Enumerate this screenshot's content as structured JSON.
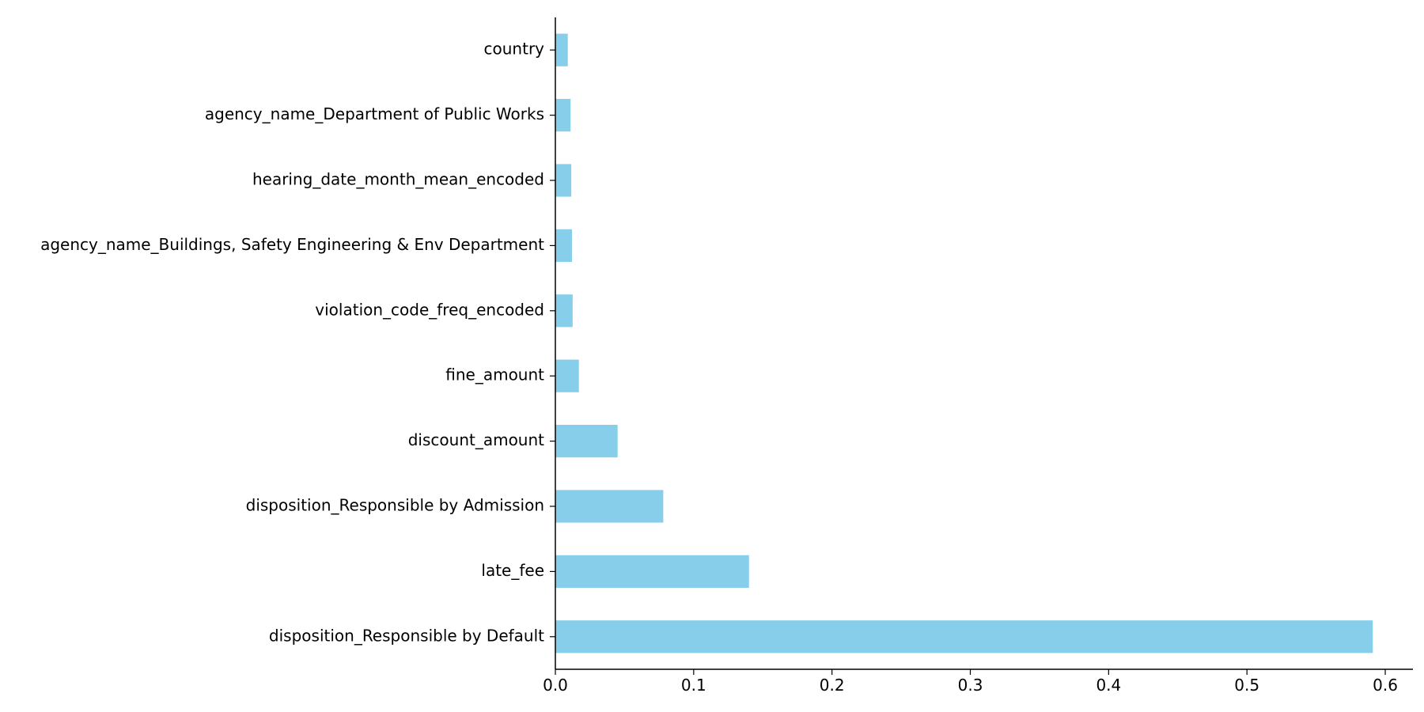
{
  "chart_data": {
    "type": "bar",
    "orientation": "horizontal",
    "title": "",
    "xlabel": "",
    "ylabel": "",
    "bar_color": "#87CEEB",
    "grid": false,
    "xlim": [
      0,
      0.62
    ],
    "x_ticks": [
      0.0,
      0.1,
      0.2,
      0.3,
      0.4,
      0.5,
      0.6
    ],
    "x_tick_labels": [
      "0.0",
      "0.1",
      "0.2",
      "0.3",
      "0.4",
      "0.5",
      "0.6"
    ],
    "categories": [
      "country",
      "agency_name_Department of Public Works",
      "hearing_date_month_mean_encoded",
      "agency_name_Buildings, Safety Engineering & Env Department",
      "violation_code_freq_encoded",
      "fine_amount",
      "discount_amount",
      "disposition_Responsible by Admission",
      "late_fee",
      "disposition_Responsible by Default"
    ],
    "values": [
      0.009,
      0.011,
      0.0115,
      0.012,
      0.0125,
      0.017,
      0.045,
      0.078,
      0.14,
      0.591
    ]
  }
}
